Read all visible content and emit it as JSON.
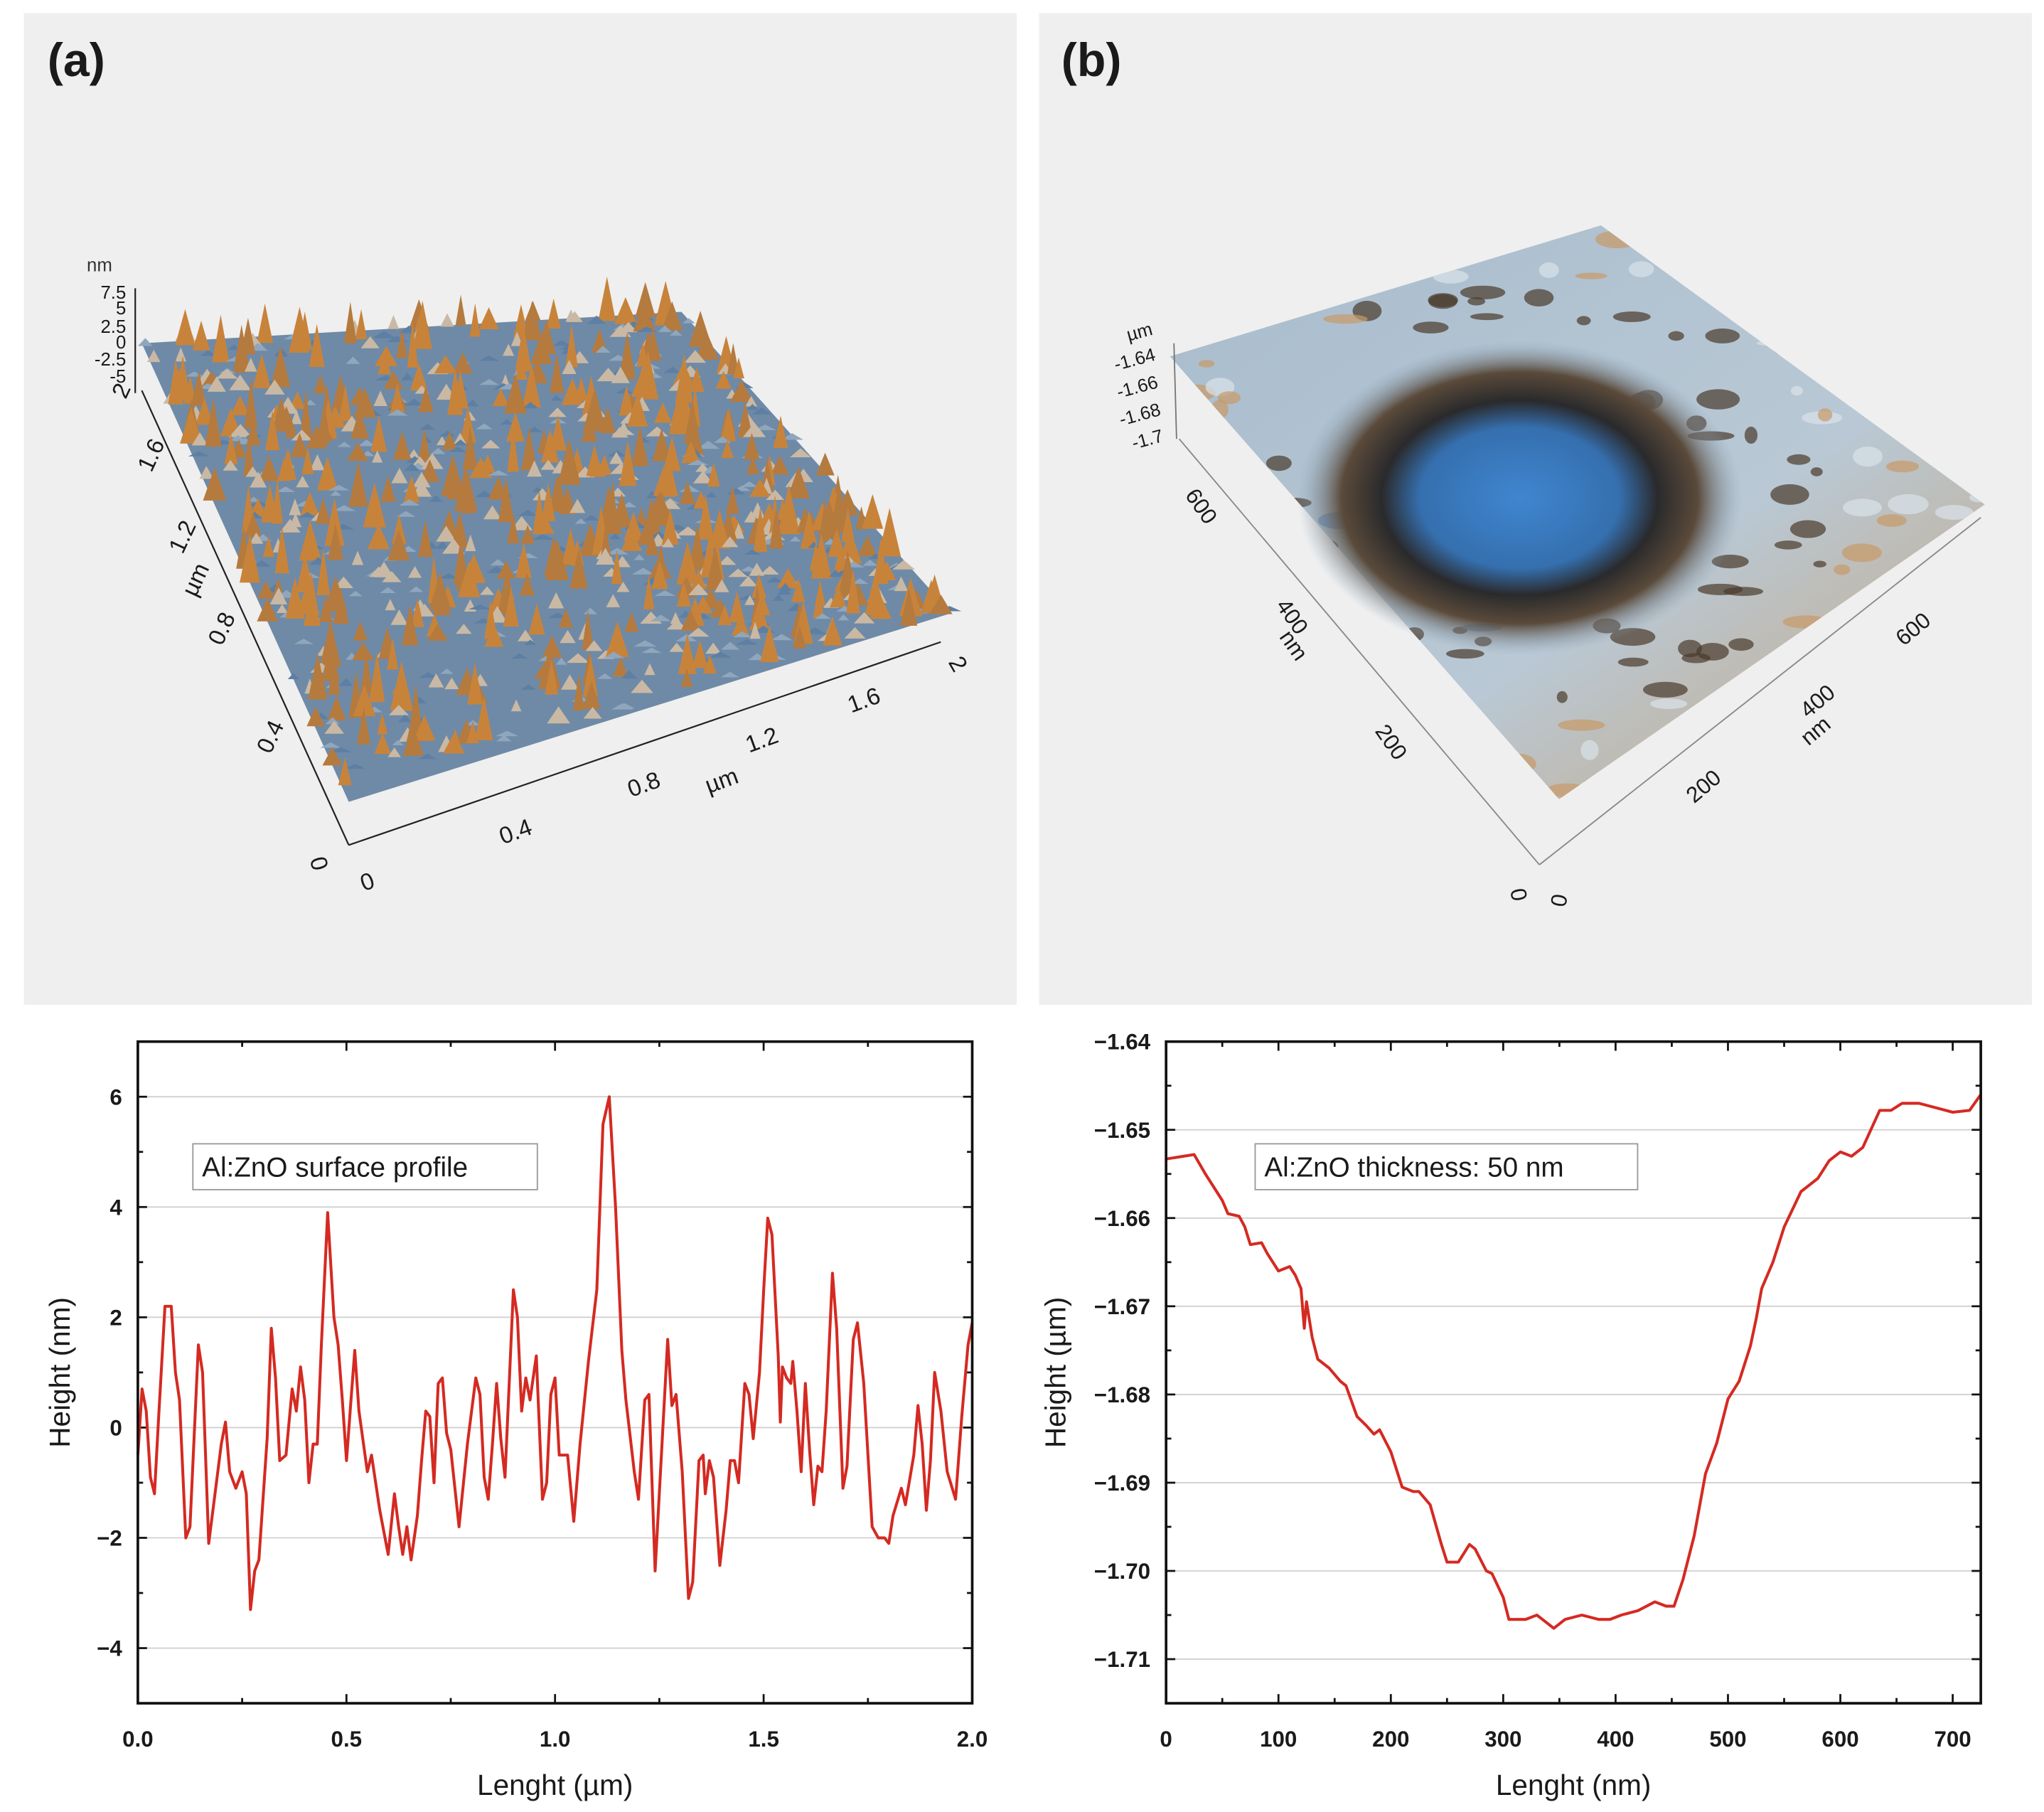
{
  "panels": {
    "a": {
      "label": "(a)",
      "z_unit": "nm",
      "z_ticks": [
        "7.5",
        "5",
        "2.5",
        "0",
        "-2.5",
        "-5"
      ],
      "y_unit": "µm",
      "y_ticks": [
        "0",
        "0.4",
        "0.8",
        "1.2",
        "1.6",
        "2"
      ],
      "x_unit": "µm",
      "x_ticks": [
        "0",
        "0.4",
        "0.8",
        "1.2",
        "1.6",
        "2"
      ]
    },
    "b": {
      "label": "(b)",
      "z_unit": "µm",
      "z_ticks": [
        "-1.64",
        "-1.66",
        "-1.68",
        "-1.7"
      ],
      "y_unit": "nm",
      "y_ticks": [
        "0",
        "200",
        "400",
        "600"
      ],
      "x_unit": "nm",
      "x_ticks": [
        "0",
        "200",
        "400",
        "600"
      ]
    }
  },
  "colors": {
    "line": "#d42a22",
    "grid": "#d0d0d0",
    "panel_bg": "#efefef",
    "peak": "#c8833a",
    "valley": "#5d7fa3"
  },
  "chart_data": [
    {
      "type": "line",
      "title": "",
      "legend": "Al:ZnO surface profile",
      "xlabel": "Lenght (µm)",
      "ylabel": "Height (nm)",
      "xlim": [
        0,
        2.0
      ],
      "ylim": [
        -5,
        7
      ],
      "xticks": [
        "0.0",
        "0.5",
        "1.0",
        "1.5",
        "2.0"
      ],
      "xtick_values": [
        0,
        0.5,
        1.0,
        1.5,
        2.0
      ],
      "yticks": [
        "−4",
        "−2",
        "0",
        "2",
        "4",
        "6"
      ],
      "ytick_values": [
        -4,
        -2,
        0,
        2,
        4,
        6
      ],
      "grid": true,
      "x": [
        0,
        0.01,
        0.02,
        0.03,
        0.04,
        0.05,
        0.065,
        0.08,
        0.09,
        0.1,
        0.115,
        0.125,
        0.145,
        0.155,
        0.17,
        0.18,
        0.2,
        0.21,
        0.22,
        0.235,
        0.25,
        0.26,
        0.27,
        0.28,
        0.29,
        0.31,
        0.32,
        0.33,
        0.34,
        0.355,
        0.37,
        0.38,
        0.39,
        0.4,
        0.41,
        0.42,
        0.43,
        0.44,
        0.455,
        0.47,
        0.48,
        0.49,
        0.5,
        0.51,
        0.52,
        0.53,
        0.55,
        0.56,
        0.58,
        0.6,
        0.615,
        0.625,
        0.635,
        0.645,
        0.655,
        0.67,
        0.68,
        0.69,
        0.7,
        0.71,
        0.72,
        0.73,
        0.74,
        0.75,
        0.77,
        0.79,
        0.81,
        0.82,
        0.83,
        0.84,
        0.85,
        0.86,
        0.87,
        0.88,
        0.9,
        0.91,
        0.92,
        0.93,
        0.94,
        0.955,
        0.97,
        0.98,
        0.99,
        1.0,
        1.01,
        1.03,
        1.045,
        1.06,
        1.08,
        1.1,
        1.115,
        1.13,
        1.145,
        1.16,
        1.17,
        1.19,
        1.2,
        1.215,
        1.225,
        1.24,
        1.255,
        1.27,
        1.28,
        1.29,
        1.305,
        1.32,
        1.33,
        1.345,
        1.355,
        1.36,
        1.37,
        1.38,
        1.395,
        1.41,
        1.42,
        1.43,
        1.44,
        1.455,
        1.465,
        1.475,
        1.49,
        1.5,
        1.51,
        1.52,
        1.535,
        1.54,
        1.545,
        1.555,
        1.565,
        1.57,
        1.58,
        1.59,
        1.6,
        1.61,
        1.62,
        1.63,
        1.64,
        1.65,
        1.665,
        1.675,
        1.69,
        1.7,
        1.715,
        1.725,
        1.74,
        1.76,
        1.775,
        1.79,
        1.8,
        1.81,
        1.83,
        1.84,
        1.86,
        1.87,
        1.88,
        1.89,
        1.9,
        1.91,
        1.925,
        1.94,
        1.96,
        1.975,
        1.99,
        2.0
      ],
      "y": [
        -0.5,
        0.7,
        0.3,
        -0.9,
        -1.2,
        0.2,
        2.2,
        2.2,
        1.0,
        0.5,
        -2.0,
        -1.8,
        1.5,
        1.0,
        -2.1,
        -1.5,
        -0.3,
        0.1,
        -0.8,
        -1.1,
        -0.8,
        -1.2,
        -3.3,
        -2.6,
        -2.4,
        -0.2,
        1.8,
        0.9,
        -0.6,
        -0.5,
        0.7,
        0.3,
        1.1,
        0.5,
        -1.0,
        -0.3,
        -0.3,
        1.5,
        3.9,
        2.0,
        1.5,
        0.5,
        -0.6,
        0.4,
        1.4,
        0.3,
        -0.8,
        -0.5,
        -1.5,
        -2.3,
        -1.2,
        -1.8,
        -2.3,
        -1.8,
        -2.4,
        -1.6,
        -0.6,
        0.3,
        0.2,
        -1.0,
        0.8,
        0.9,
        -0.1,
        -0.4,
        -1.8,
        -0.3,
        0.9,
        0.6,
        -0.9,
        -1.3,
        -0.3,
        0.8,
        -0.2,
        -0.9,
        2.5,
        2.0,
        0.3,
        0.9,
        0.5,
        1.3,
        -1.3,
        -1.0,
        0.6,
        0.9,
        -0.5,
        -0.5,
        -1.7,
        -0.3,
        1.2,
        2.5,
        5.5,
        6.0,
        4.0,
        1.4,
        0.5,
        -0.8,
        -1.3,
        0.5,
        0.6,
        -2.6,
        -0.5,
        1.6,
        0.4,
        0.6,
        -0.8,
        -3.1,
        -2.8,
        -0.6,
        -0.5,
        -1.2,
        -0.6,
        -0.9,
        -2.5,
        -1.5,
        -0.6,
        -0.6,
        -1.0,
        0.8,
        0.6,
        -0.2,
        1.0,
        2.5,
        3.8,
        3.5,
        1.3,
        0.1,
        1.1,
        0.9,
        0.8,
        1.2,
        0.3,
        -0.8,
        0.8,
        -0.4,
        -1.4,
        -0.7,
        -0.8,
        0.3,
        2.8,
        1.8,
        -1.1,
        -0.7,
        1.6,
        1.9,
        0.8,
        -1.8,
        -2.0,
        -2.0,
        -2.1,
        -1.6,
        -1.1,
        -1.4,
        -0.5,
        0.4,
        -0.3,
        -1.5,
        -0.6,
        1.0,
        0.3,
        -0.8,
        -1.3,
        0.2,
        1.5,
        1.9
      ]
    },
    {
      "type": "line",
      "title": "",
      "legend": "Al:ZnO thickness: 50 nm",
      "xlabel": "Lenght (nm)",
      "ylabel": "Height (µm)",
      "xlim": [
        0,
        725
      ],
      "ylim": [
        -1.715,
        -1.64
      ],
      "xticks": [
        "0",
        "100",
        "200",
        "300",
        "400",
        "500",
        "600",
        "700"
      ],
      "xtick_values": [
        0,
        100,
        200,
        300,
        400,
        500,
        600,
        700
      ],
      "yticks": [
        "−1.64",
        "−1.65",
        "−1.66",
        "−1.67",
        "−1.68",
        "−1.69",
        "−1.70",
        "−1.71"
      ],
      "ytick_values": [
        -1.64,
        -1.65,
        -1.66,
        -1.67,
        -1.68,
        -1.69,
        -1.7,
        -1.71
      ],
      "grid": true,
      "x": [
        0,
        25,
        35,
        50,
        55,
        65,
        70,
        75,
        85,
        90,
        100,
        110,
        115,
        120,
        123,
        125,
        130,
        135,
        145,
        155,
        160,
        170,
        178,
        185,
        190,
        200,
        210,
        220,
        225,
        235,
        245,
        250,
        260,
        270,
        275,
        285,
        290,
        300,
        305,
        320,
        330,
        340,
        345,
        355,
        370,
        385,
        395,
        405,
        420,
        435,
        445,
        452,
        460,
        470,
        480,
        490,
        500,
        510,
        520,
        525,
        530,
        540,
        550,
        565,
        580,
        590,
        600,
        610,
        620,
        635,
        645,
        655,
        670,
        685,
        700,
        715,
        725
      ],
      "y": [
        -1.6533,
        -1.6528,
        -1.655,
        -1.658,
        -1.6595,
        -1.6598,
        -1.661,
        -1.663,
        -1.6628,
        -1.664,
        -1.666,
        -1.6655,
        -1.6665,
        -1.668,
        -1.6725,
        -1.6695,
        -1.6735,
        -1.676,
        -1.677,
        -1.6785,
        -1.679,
        -1.6825,
        -1.6835,
        -1.6845,
        -1.684,
        -1.6865,
        -1.6905,
        -1.691,
        -1.691,
        -1.6925,
        -1.697,
        -1.699,
        -1.699,
        -1.697,
        -1.6975,
        -1.7,
        -1.7003,
        -1.703,
        -1.7055,
        -1.7055,
        -1.705,
        -1.706,
        -1.7065,
        -1.7055,
        -1.705,
        -1.7055,
        -1.7055,
        -1.705,
        -1.7045,
        -1.7035,
        -1.704,
        -1.704,
        -1.701,
        -1.696,
        -1.689,
        -1.6855,
        -1.6805,
        -1.6785,
        -1.6745,
        -1.6715,
        -1.668,
        -1.665,
        -1.661,
        -1.657,
        -1.6555,
        -1.6535,
        -1.6525,
        -1.653,
        -1.652,
        -1.6478,
        -1.6478,
        -1.647,
        -1.647,
        -1.6475,
        -1.648,
        -1.6478,
        -1.646
      ]
    }
  ]
}
